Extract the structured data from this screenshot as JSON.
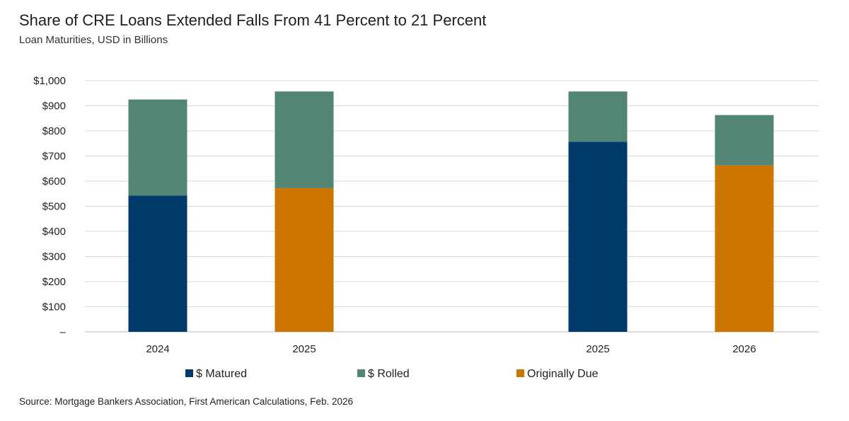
{
  "title": "Share of CRE Loans Extended Falls From 41 Percent to 21 Percent",
  "subtitle": "Loan Maturities, USD in Billions",
  "source": "Source: Mortgage Bankers Association, First American Calculations, Feb. 2026",
  "colors": {
    "matured": "#003a6b",
    "rolled": "#528574",
    "originally_due": "#cc7500",
    "grid": "#d9d9d9"
  },
  "chart_data": {
    "type": "bar",
    "stacked": true,
    "title": "Share of CRE Loans Extended Falls From 41 Percent to 21 Percent",
    "subtitle": "Loan Maturities, USD in Billions",
    "categories": [
      "2024",
      "2025",
      "2025",
      "2026"
    ],
    "y_tick_labels": [
      "–",
      "$100",
      "$200",
      "$300",
      "$400",
      "$500",
      "$600",
      "$700",
      "$800",
      "$900",
      "$1,000"
    ],
    "ylim": [
      0,
      1000
    ],
    "grid": true,
    "legend_position": "bottom",
    "series": [
      {
        "name": "$ Matured",
        "values": [
          543,
          null,
          757,
          null
        ]
      },
      {
        "name": "$ Rolled",
        "values": [
          382,
          385,
          200,
          200
        ]
      },
      {
        "name": "Originally Due",
        "values": [
          null,
          572,
          null,
          663
        ]
      }
    ]
  }
}
